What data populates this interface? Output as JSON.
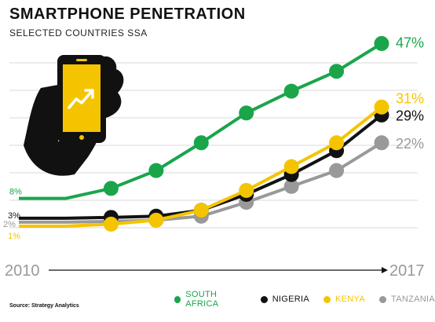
{
  "title": "SMARTPHONE PENETRATION",
  "subtitle": "SELECTED COUNTRIES SSA",
  "source": "Source: Strategy Analytics",
  "chart_data": {
    "type": "line",
    "x": [
      2010,
      2011,
      2012,
      2013,
      2014,
      2015,
      2016,
      2017
    ],
    "x_start_label": "2010",
    "x_end_label": "2017",
    "ylim": [
      0,
      55
    ],
    "grid": true,
    "legend_position": "bottom-right",
    "series": [
      {
        "name": "SOUTH AFRICA",
        "color": "#1aa54b",
        "values": [
          8,
          10.5,
          15,
          22,
          29.5,
          35,
          40,
          47
        ],
        "start_label": "8%",
        "end_label": "47%"
      },
      {
        "name": "NIGERIA",
        "color": "#111111",
        "values": [
          3,
          3.2,
          3.5,
          5,
          9,
          14,
          20,
          29
        ],
        "start_label": "3%",
        "end_label": "29%"
      },
      {
        "name": "KENYA",
        "color": "#f5c400",
        "values": [
          1,
          1.5,
          2.5,
          5,
          10,
          16,
          22,
          31
        ],
        "start_label": "1%",
        "end_label": "31%"
      },
      {
        "name": "TANZANIA",
        "color": "#999999",
        "values": [
          2,
          2.2,
          2.5,
          3.5,
          7,
          11,
          15,
          22
        ],
        "start_label": "2%",
        "end_label": "22%"
      }
    ]
  },
  "icons": {
    "hand": "hand-holding-phone-icon"
  }
}
